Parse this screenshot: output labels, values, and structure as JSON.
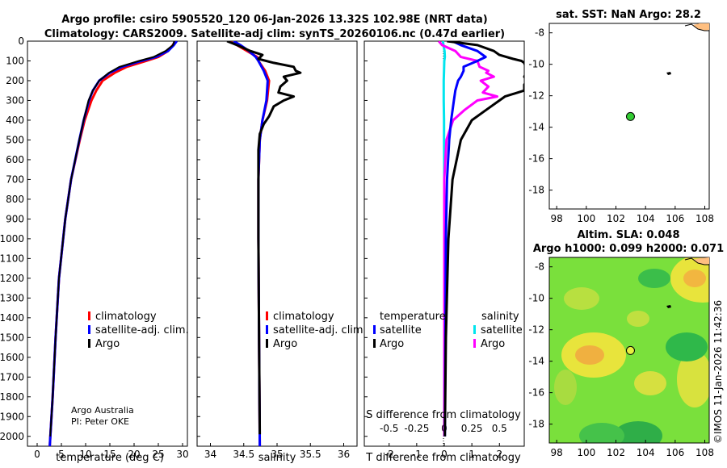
{
  "title_line1": "Argo profile: csiro 5905520_120 06-Jan-2026 13.32S 102.98E (NRT data)",
  "title_line2": "Climatology: CARS2009. Satellite-adj clim: synTS_20260106.nc (0.47d earlier)",
  "credit_line1": "Argo Australia",
  "credit_line2": "PI: Peter OKE",
  "watermark": "©IMOS 11-Jan-2026 11:42:36",
  "colors": {
    "climatology": "#ff0000",
    "satellite": "#0000ff",
    "argo": "#000000",
    "sal_sat": "#00e5ee",
    "sal_argo": "#ff00ff"
  },
  "chart_data": [
    {
      "type": "line",
      "name": "temperature-profile",
      "xlabel": "temperature (deg C)",
      "ylabel": "",
      "xlim": [
        -2,
        31
      ],
      "ylim": [
        2050,
        0
      ],
      "xticks": [
        0,
        5,
        10,
        15,
        20,
        25,
        30
      ],
      "yticks": [
        0,
        100,
        200,
        300,
        400,
        500,
        600,
        700,
        800,
        900,
        1000,
        1100,
        1200,
        1300,
        1400,
        1500,
        1600,
        1700,
        1800,
        1900,
        2000
      ],
      "legend": [
        "climatology",
        "satellite-adj. clim.",
        "Argo"
      ],
      "series": [
        {
          "name": "climatology",
          "depth": [
            0,
            20,
            50,
            80,
            100,
            130,
            160,
            200,
            250,
            300,
            400,
            500,
            700,
            900,
            1200,
            1500,
            1800,
            2050
          ],
          "values": [
            28.5,
            28.0,
            27.0,
            25.0,
            22.5,
            18.5,
            16.0,
            13.5,
            12.2,
            11.2,
            9.8,
            8.8,
            7.0,
            5.8,
            4.5,
            3.8,
            3.2,
            2.6
          ]
        },
        {
          "name": "satellite-adj. clim.",
          "depth": [
            0,
            20,
            50,
            80,
            100,
            130,
            160,
            200,
            250,
            300,
            400,
            500,
            700,
            900,
            1200,
            1500,
            1800,
            2050
          ],
          "values": [
            28.8,
            28.2,
            27.0,
            24.5,
            21.5,
            17.5,
            15.0,
            12.8,
            11.5,
            10.7,
            9.6,
            8.7,
            7.0,
            5.8,
            4.5,
            3.8,
            3.2,
            2.6
          ]
        },
        {
          "name": "Argo",
          "depth": [
            0,
            20,
            50,
            80,
            100,
            130,
            160,
            200,
            250,
            300,
            400,
            500,
            700,
            900,
            1200,
            1500,
            1800,
            2000
          ],
          "values": [
            28.3,
            28.0,
            26.5,
            24.0,
            21.0,
            17.0,
            14.8,
            12.8,
            11.5,
            10.6,
            9.6,
            8.7,
            7.0,
            5.8,
            4.5,
            3.8,
            3.2,
            2.7
          ]
        }
      ]
    },
    {
      "type": "line",
      "name": "salinity-profile",
      "xlabel": "salinity",
      "xlim": [
        33.8,
        36.2
      ],
      "ylim": [
        2050,
        0
      ],
      "xticks": [
        34,
        34.5,
        35,
        35.5,
        36
      ],
      "legend": [
        "climatology",
        "satellite-adj. clim.",
        "Argo"
      ],
      "series": [
        {
          "name": "climatology",
          "depth": [
            0,
            20,
            50,
            80,
            100,
            150,
            200,
            300,
            400,
            500,
            700,
            1000,
            1500,
            2050
          ],
          "values": [
            34.27,
            34.4,
            34.55,
            34.7,
            34.72,
            34.82,
            34.88,
            34.85,
            34.78,
            34.74,
            34.72,
            34.72,
            34.73,
            34.74
          ]
        },
        {
          "name": "satellite-adj. clim.",
          "depth": [
            0,
            20,
            50,
            80,
            100,
            150,
            200,
            300,
            400,
            500,
            700,
            1000,
            1500,
            2050
          ],
          "values": [
            34.35,
            34.45,
            34.58,
            34.68,
            34.72,
            34.8,
            34.86,
            34.84,
            34.78,
            34.74,
            34.72,
            34.72,
            34.73,
            34.74
          ]
        },
        {
          "name": "Argo",
          "depth": [
            0,
            20,
            50,
            70,
            90,
            110,
            130,
            150,
            160,
            180,
            200,
            230,
            260,
            280,
            300,
            330,
            380,
            420,
            470,
            550,
            700,
            1000,
            1500,
            1990
          ],
          "values": [
            34.25,
            34.4,
            34.6,
            34.78,
            34.72,
            34.95,
            35.25,
            35.28,
            35.35,
            35.1,
            35.15,
            35.05,
            35.02,
            35.25,
            35.1,
            34.95,
            34.88,
            34.8,
            34.74,
            34.72,
            34.72,
            34.72,
            34.73,
            34.74
          ]
        }
      ]
    },
    {
      "type": "line",
      "name": "difference-profile",
      "xlabel": "T difference from climatology",
      "xlabel_top": "S difference from climatology",
      "xlim": [
        -2.9,
        2.9
      ],
      "ylim": [
        2050,
        0
      ],
      "xticks": [
        -2,
        -1,
        0,
        1,
        2
      ],
      "xticks_top": [
        -0.5,
        -0.25,
        0,
        0.25,
        0.5
      ],
      "xticklabels_top": [
        "-0.5",
        "-0.25",
        "0",
        "0.25",
        "0.5"
      ],
      "legend_temperature": {
        "heading": "temperature",
        "items": [
          "satellite",
          "Argo"
        ]
      },
      "legend_salinity": {
        "heading": "salinity",
        "items": [
          "satellite",
          "Argo"
        ]
      },
      "series": [
        {
          "name": "temperature satellite",
          "depth": [
            0,
            20,
            50,
            80,
            100,
            130,
            150,
            180,
            200,
            250,
            300,
            400,
            500,
            700,
            1000,
            1500,
            2000
          ],
          "values": [
            0.3,
            0.6,
            1.2,
            1.5,
            1.2,
            0.7,
            0.7,
            0.6,
            0.5,
            0.4,
            0.35,
            0.25,
            0.18,
            0.1,
            0.06,
            0.04,
            0.02
          ]
        },
        {
          "name": "temperature Argo",
          "depth": [
            0,
            20,
            50,
            70,
            90,
            100,
            110,
            130,
            150,
            180,
            200,
            220,
            250,
            280,
            300,
            350,
            400,
            500,
            700,
            1000,
            1500,
            2000
          ],
          "values": [
            0.1,
            1.2,
            1.8,
            2.0,
            2.5,
            2.8,
            2.9,
            2.95,
            3.0,
            2.9,
            3.0,
            2.9,
            2.9,
            2.2,
            2.0,
            1.5,
            1.0,
            0.6,
            0.3,
            0.15,
            0.06,
            0.02
          ]
        },
        {
          "name": "salinity satellite",
          "depth": [
            0,
            20,
            50,
            80,
            100,
            150,
            200,
            300,
            400,
            500,
            700,
            1000,
            1500,
            2000
          ],
          "values": [
            -0.05,
            -0.03,
            0.01,
            0.02,
            0.0,
            -0.01,
            -0.02,
            -0.02,
            -0.01,
            -0.01,
            0.0,
            0.0,
            0.0,
            0.0
          ]
        },
        {
          "name": "salinity Argo",
          "depth": [
            0,
            20,
            50,
            80,
            100,
            130,
            150,
            160,
            180,
            200,
            230,
            260,
            280,
            300,
            350,
            400,
            500,
            700,
            1000,
            1500,
            2000
          ],
          "values": [
            -0.05,
            -0.02,
            0.1,
            0.15,
            0.3,
            0.32,
            0.4,
            0.38,
            0.45,
            0.33,
            0.4,
            0.35,
            0.48,
            0.3,
            0.18,
            0.08,
            0.02,
            0.0,
            0.0,
            0.0,
            0.0
          ]
        }
      ]
    },
    {
      "type": "heatmap",
      "name": "sst-map",
      "title": "sat. SST: NaN Argo: 28.2",
      "xlim": [
        97.5,
        108.3
      ],
      "ylim": [
        -19.2,
        -7.4
      ],
      "xticks": [
        98,
        100,
        102,
        104,
        106,
        108
      ],
      "yticks": [
        -8,
        -10,
        -12,
        -14,
        -16,
        -18
      ],
      "profile_location": [
        102.98,
        -13.32
      ]
    },
    {
      "type": "heatmap",
      "name": "sla-map",
      "title_line1": "Altim. SLA: 0.048",
      "title_line2": "Argo h1000: 0.099 h2000: 0.071",
      "xlim": [
        97.5,
        108.3
      ],
      "ylim": [
        -19.2,
        -7.4
      ],
      "xticks": [
        98,
        100,
        102,
        104,
        106,
        108
      ],
      "yticks": [
        -8,
        -10,
        -12,
        -14,
        -16,
        -18
      ],
      "profile_location": [
        102.98,
        -13.32
      ]
    }
  ]
}
